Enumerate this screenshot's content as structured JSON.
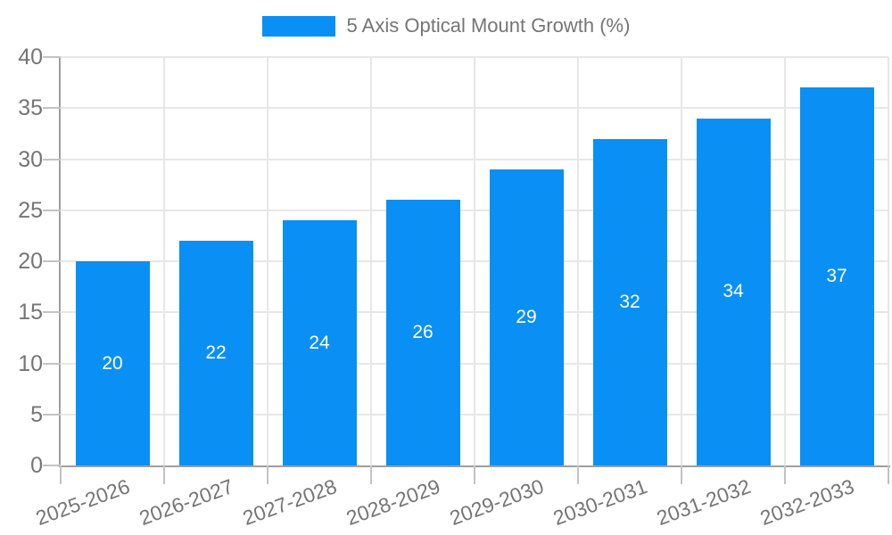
{
  "chart_data": {
    "type": "bar",
    "title": "5 Axis Optical Mount Growth (%)",
    "categories": [
      "2025-2026",
      "2026-2027",
      "2027-2028",
      "2028-2029",
      "2029-2030",
      "2030-2031",
      "2031-2032",
      "2032-2033"
    ],
    "values": [
      20,
      22,
      24,
      26,
      29,
      32,
      34,
      37
    ],
    "xlabel": "",
    "ylabel": "",
    "ylim": [
      0,
      40
    ],
    "ytick_step": 5,
    "grid": true,
    "legend_position": "top-center",
    "value_labels": "inside-center",
    "colors": {
      "bar": "#0a90f4",
      "value_label": "#ffffff",
      "axis_text": "#757575",
      "legend_text": "#757575"
    }
  }
}
